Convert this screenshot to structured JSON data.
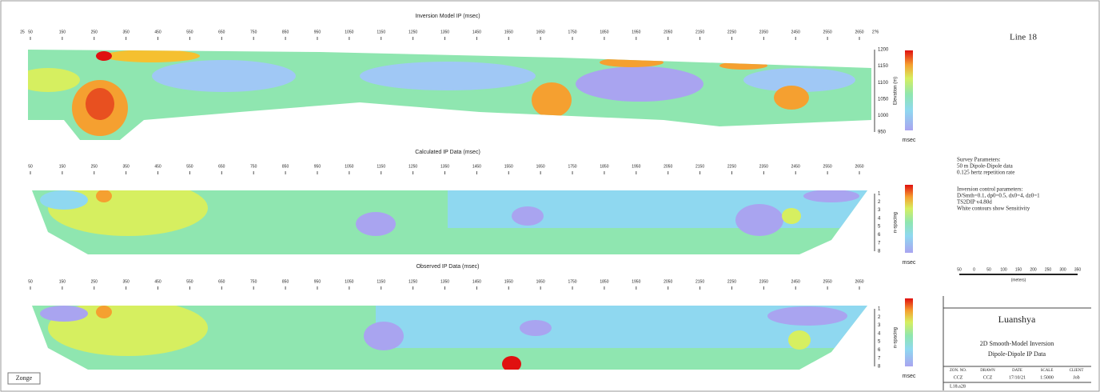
{
  "panels": [
    {
      "title": "Inversion Model IP (msec)",
      "left_label": "25",
      "right_label": "2?6",
      "axis_title": "Elevation (m)",
      "side_ticks": [
        "1200",
        "1150",
        "1100",
        "1050",
        "1000",
        "950"
      ],
      "unit": "msec"
    },
    {
      "title": "Calculated IP Data (msec)",
      "axis_title": "n-spacing",
      "side_ticks": [
        "1",
        "2",
        "3",
        "4",
        "5",
        "6",
        "7",
        "8"
      ],
      "unit": "msec"
    },
    {
      "title": "Observed IP Data (msec)",
      "axis_title": "n-spacing",
      "side_ticks": [
        "1",
        "2",
        "3",
        "4",
        "5",
        "6",
        "7",
        "8"
      ],
      "unit": "msec"
    }
  ],
  "stations": [
    "50",
    "150",
    "250",
    "350",
    "450",
    "550",
    "650",
    "750",
    "850",
    "950",
    "1050",
    "1150",
    "1250",
    "1350",
    "1450",
    "1550",
    "1650",
    "1750",
    "1850",
    "1950",
    "2050",
    "2150",
    "2250",
    "2350",
    "2450",
    "2550",
    "2650"
  ],
  "line_title": "Line 18",
  "survey": [
    "Survey Parameters:",
    "50 m Dipole-Dipole data",
    "0.125 hertz repetition rate"
  ],
  "inversion": [
    "Inversion control parameters:",
    "D/Smth=0.1, dp0=0.5, dx0=4, dz0=1",
    "TS2DIP v4.80d",
    "White contours show Sensitivity"
  ],
  "scale_bar": {
    "labels": [
      "50",
      "0",
      "50",
      "100",
      "150",
      "200",
      "250",
      "300",
      "350"
    ],
    "unit": "(meters)"
  },
  "title_block": {
    "project": "Luanshya",
    "line1": "2D Smooth-Model Inversion",
    "line2": "Dipole-Dipole IP Data",
    "headers": [
      "ZON. NO.",
      "DRAWN",
      "DATE",
      "SCALE",
      "CLIENT"
    ],
    "values": [
      "CCZ",
      "CCZ",
      "17/10/21",
      "1:5000",
      "Job"
    ],
    "file": "L18.a28"
  },
  "logo": "Zonge"
}
